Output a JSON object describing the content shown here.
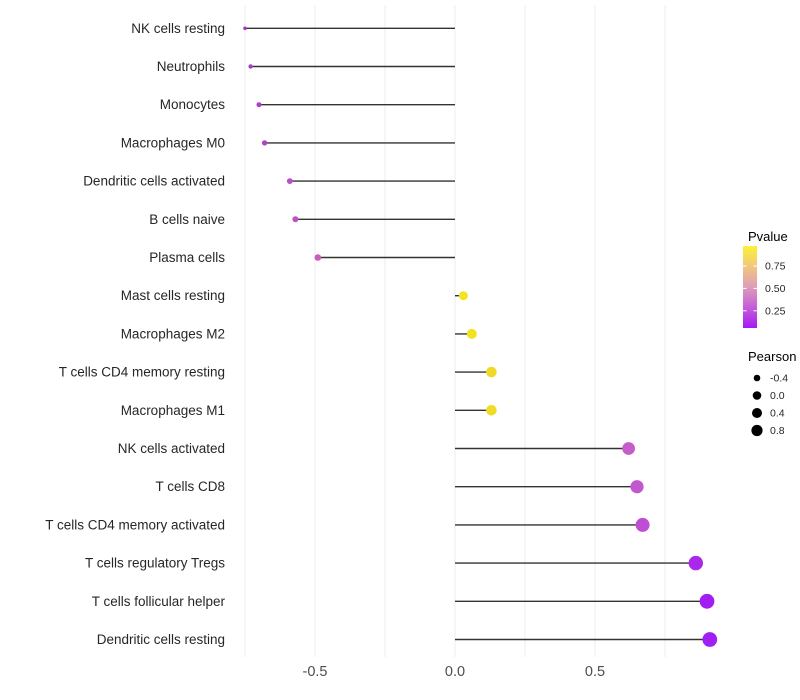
{
  "figure": {
    "background": "#ffffff"
  },
  "chart_data": {
    "type": "scatter",
    "subtype": "lollipop",
    "title": "",
    "xlabel": "",
    "ylabel": "",
    "xlim": [
      -0.76,
      1.01
    ],
    "x_ticks": [
      -0.5,
      0.0,
      0.5
    ],
    "x_tick_labels": [
      "-0.5",
      "0.0",
      "0.5"
    ],
    "gridlines": [
      -0.75,
      -0.5,
      -0.25,
      0.0,
      0.25,
      0.5,
      0.75
    ],
    "grid_color": "#EDEDED",
    "stem_color": "#333333",
    "baseline": 0.0,
    "axis_text_color": "#4D4D4D",
    "label_text_color": "#262626",
    "rows": [
      {
        "label": "NK cells resting",
        "pearson": -0.75,
        "dot_color": "#A338CC",
        "dot_diameter": 3.6
      },
      {
        "label": "Neutrophils",
        "pearson": -0.73,
        "dot_color": "#A63CCA",
        "dot_diameter": 4.4
      },
      {
        "label": "Monocytes",
        "pearson": -0.7,
        "dot_color": "#A93FCD",
        "dot_diameter": 5.0
      },
      {
        "label": "Macrophages M0",
        "pearson": -0.68,
        "dot_color": "#AC42CE",
        "dot_diameter": 5.4
      },
      {
        "label": "Dendritic cells activated",
        "pearson": -0.59,
        "dot_color": "#BB4DC8",
        "dot_diameter": 5.8
      },
      {
        "label": "B cells naive",
        "pearson": -0.57,
        "dot_color": "#BF51C4",
        "dot_diameter": 6.0
      },
      {
        "label": "Plasma cells",
        "pearson": -0.49,
        "dot_color": "#C75FBD",
        "dot_diameter": 6.6
      },
      {
        "label": "Mast cells resting",
        "pearson": 0.03,
        "dot_color": "#F2E41F",
        "dot_diameter": 9.0
      },
      {
        "label": "Macrophages M2",
        "pearson": 0.06,
        "dot_color": "#F2E31E",
        "dot_diameter": 10.0
      },
      {
        "label": "T cells CD4 memory resting",
        "pearson": 0.13,
        "dot_color": "#EFD929",
        "dot_diameter": 10.6
      },
      {
        "label": "Macrophages M1",
        "pearson": 0.13,
        "dot_color": "#F0DC26",
        "dot_diameter": 10.6
      },
      {
        "label": "NK cells activated",
        "pearson": 0.62,
        "dot_color": "#C55DC9",
        "dot_diameter": 12.8
      },
      {
        "label": "T cells CD8",
        "pearson": 0.65,
        "dot_color": "#C257CE",
        "dot_diameter": 13.2
      },
      {
        "label": "T cells CD4 memory activated",
        "pearson": 0.67,
        "dot_color": "#BE4FD4",
        "dot_diameter": 14.0
      },
      {
        "label": "T cells regulatory  Tregs",
        "pearson": 0.86,
        "dot_color": "#A928EA",
        "dot_diameter": 14.4
      },
      {
        "label": "T cells follicular helper",
        "pearson": 0.9,
        "dot_color": "#A21DF0",
        "dot_diameter": 14.8
      },
      {
        "label": "Dendritic cells resting",
        "pearson": 0.91,
        "dot_color": "#A01FF2",
        "dot_diameter": 14.8
      }
    ],
    "legend_pvalue": {
      "title": "Pvalue",
      "tick_labels": [
        "0.75",
        "0.50",
        "0.25"
      ],
      "gradient_top_to_bottom": [
        "#FBF235",
        "#F0C77E",
        "#DE9DB8",
        "#C45DD8",
        "#A31BF2"
      ]
    },
    "legend_pearson": {
      "title": "Pearson",
      "items": [
        {
          "label": "-0.4",
          "dot_diameter": 6.6
        },
        {
          "label": "0.0",
          "dot_diameter": 8.6
        },
        {
          "label": "0.4",
          "dot_diameter": 10.0
        },
        {
          "label": "0.8",
          "dot_diameter": 11.2
        }
      ],
      "dot_color": "#000000"
    }
  }
}
